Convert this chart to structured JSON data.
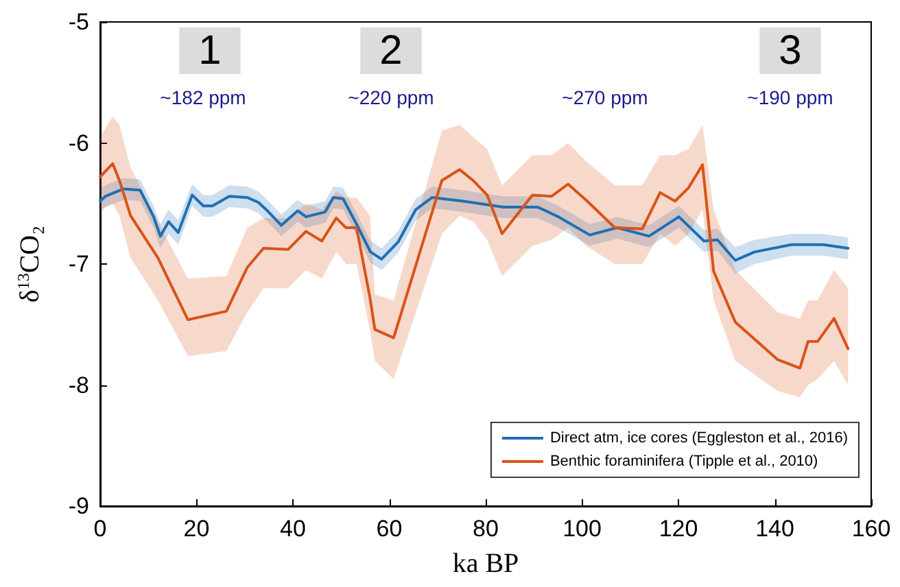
{
  "chart_data": {
    "type": "line",
    "xlabel": "ka BP",
    "ylabel": "δ$^{13}$CO₂",
    "xlim": [
      0,
      160
    ],
    "xticks": [
      0,
      20,
      40,
      60,
      80,
      100,
      120,
      140,
      160
    ],
    "ylim": [
      -9,
      -5
    ],
    "yticks": [
      -9,
      -8,
      -7,
      -6,
      -5
    ],
    "grid": false,
    "legend": "bottom right",
    "marker": "none",
    "line_style": "solid",
    "annotations": [
      "1",
      "2",
      "3",
      "~182 ppm",
      "~220 ppm",
      "~270 ppm",
      "~190 ppm"
    ],
    "series": [
      {
        "name": "Direct atm, ice cores (Eggleston et al., 2016)",
        "color": "#1f6fb4",
        "x": [
          0,
          1.1,
          4.8,
          8.3,
          11.1,
          12.5,
          14.2,
          16.2,
          19.1,
          21.4,
          23.3,
          26.8,
          30.5,
          32.8,
          34.7,
          37.6,
          41,
          42.7,
          46.7,
          48.4,
          50.4,
          53.2,
          56.1,
          58.4,
          61.8,
          65.5,
          68.9,
          75.2,
          83.7,
          90.8,
          95.1,
          101.6,
          107.3,
          113.9,
          120.1,
          125.3,
          128.1,
          131.8,
          135.8,
          143.5,
          150,
          155.2
        ],
        "values": [
          -6.48,
          -6.44,
          -6.38,
          -6.39,
          -6.61,
          -6.77,
          -6.65,
          -6.74,
          -6.43,
          -6.52,
          -6.52,
          -6.44,
          -6.45,
          -6.49,
          -6.56,
          -6.68,
          -6.56,
          -6.61,
          -6.57,
          -6.45,
          -6.46,
          -6.67,
          -6.9,
          -6.96,
          -6.82,
          -6.55,
          -6.45,
          -6.48,
          -6.53,
          -6.53,
          -6.61,
          -6.76,
          -6.7,
          -6.77,
          -6.61,
          -6.81,
          -6.8,
          -6.97,
          -6.9,
          -6.84,
          -6.84,
          -6.87
        ],
        "lower": [
          -6.58,
          -6.53,
          -6.47,
          -6.48,
          -6.7,
          -6.87,
          -6.75,
          -6.84,
          -6.52,
          -6.61,
          -6.61,
          -6.53,
          -6.54,
          -6.58,
          -6.65,
          -6.77,
          -6.65,
          -6.7,
          -6.66,
          -6.54,
          -6.55,
          -6.76,
          -6.99,
          -7.05,
          -6.91,
          -6.64,
          -6.54,
          -6.57,
          -6.62,
          -6.62,
          -6.7,
          -6.85,
          -6.79,
          -6.86,
          -6.7,
          -6.9,
          -6.89,
          -7.08,
          -7.0,
          -6.93,
          -6.93,
          -6.96
        ],
        "upper": [
          -6.38,
          -6.35,
          -6.29,
          -6.3,
          -6.52,
          -6.67,
          -6.55,
          -6.64,
          -6.34,
          -6.43,
          -6.43,
          -6.35,
          -6.36,
          -6.4,
          -6.47,
          -6.59,
          -6.47,
          -6.52,
          -6.48,
          -6.36,
          -6.37,
          -6.58,
          -6.81,
          -6.87,
          -6.73,
          -6.46,
          -6.36,
          -6.39,
          -6.44,
          -6.44,
          -6.52,
          -6.67,
          -6.61,
          -6.68,
          -6.52,
          -6.72,
          -6.71,
          -6.86,
          -6.8,
          -6.75,
          -6.75,
          -6.78
        ]
      },
      {
        "name": "Benthic foraminifera (Tipple et al., 2010)",
        "color": "#d95319",
        "x": [
          0,
          2.6,
          4,
          6.3,
          12,
          18.2,
          26.2,
          30.5,
          33.9,
          39,
          42.7,
          46,
          49,
          51,
          53.2,
          56,
          57,
          60.9,
          70.9,
          74.6,
          77.4,
          80.3,
          83.4,
          89.7,
          93.7,
          97.1,
          100.8,
          106.8,
          112.5,
          116.2,
          119.3,
          122.1,
          125,
          127.3,
          131.8,
          140.6,
          145.2,
          146.9,
          148.9,
          152.3,
          155.2
        ],
        "values": [
          -6.28,
          -6.17,
          -6.31,
          -6.6,
          -6.95,
          -7.46,
          -7.39,
          -7.03,
          -6.87,
          -6.88,
          -6.73,
          -6.81,
          -6.62,
          -6.7,
          -6.7,
          -7.28,
          -7.54,
          -7.61,
          -6.31,
          -6.22,
          -6.31,
          -6.43,
          -6.75,
          -6.43,
          -6.44,
          -6.34,
          -6.47,
          -6.7,
          -6.71,
          -6.41,
          -6.48,
          -6.37,
          -6.18,
          -7.06,
          -7.48,
          -7.79,
          -7.86,
          -7.64,
          -7.64,
          -7.45,
          -7.7
        ],
        "lower": [
          -6.55,
          -6.5,
          -6.6,
          -6.95,
          -7.3,
          -7.76,
          -7.72,
          -7.4,
          -7.2,
          -7.2,
          -7.05,
          -7.12,
          -6.9,
          -7.0,
          -7.0,
          -7.55,
          -7.8,
          -7.95,
          -6.75,
          -6.6,
          -6.65,
          -6.8,
          -7.1,
          -6.85,
          -6.8,
          -6.7,
          -6.85,
          -7.0,
          -7.0,
          -6.75,
          -6.85,
          -6.75,
          -6.55,
          -7.3,
          -7.8,
          -8.05,
          -8.1,
          -8.0,
          -7.95,
          -7.8,
          -8.0
        ],
        "upper": [
          -5.95,
          -5.78,
          -5.85,
          -6.2,
          -6.65,
          -7.12,
          -7.1,
          -6.7,
          -6.62,
          -6.62,
          -6.5,
          -6.55,
          -6.4,
          -6.45,
          -6.45,
          -6.6,
          -7.25,
          -7.3,
          -5.9,
          -5.85,
          -5.95,
          -6.05,
          -6.35,
          -6.1,
          -6.1,
          -6.0,
          -6.15,
          -6.35,
          -6.35,
          -6.1,
          -6.1,
          -6.05,
          -5.85,
          -6.55,
          -7.05,
          -7.4,
          -7.45,
          -7.3,
          -7.3,
          -7.05,
          -7.2
        ]
      }
    ]
  }
}
